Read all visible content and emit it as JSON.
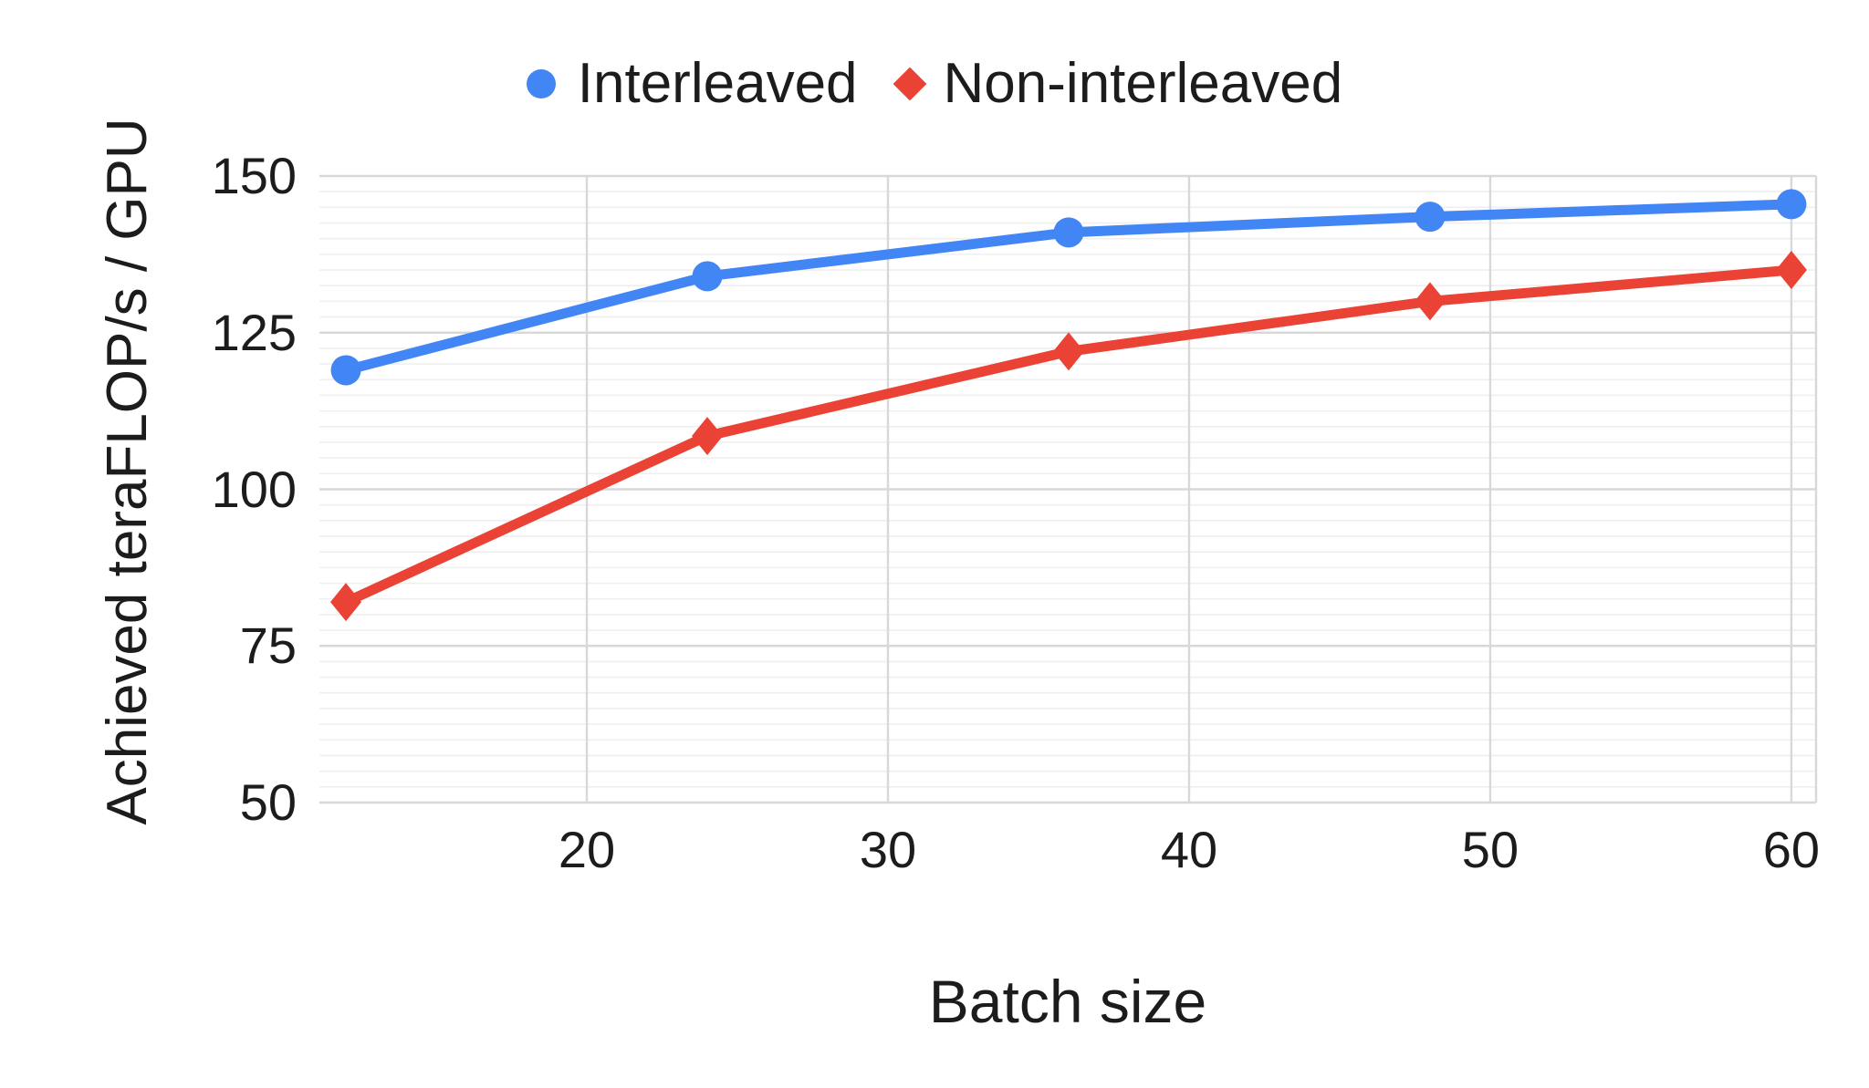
{
  "chart_data": {
    "type": "line",
    "x": [
      12,
      24,
      36,
      48,
      60
    ],
    "series": [
      {
        "name": "Interleaved",
        "marker": "circle",
        "color": "#4285F4",
        "values": [
          119,
          134,
          141,
          143.5,
          145.5
        ]
      },
      {
        "name": "Non-interleaved",
        "marker": "diamond",
        "color": "#EA4335",
        "values": [
          82,
          108.5,
          122,
          130,
          135
        ]
      }
    ],
    "xlabel": "Batch size",
    "ylabel": "Achieved teraFLOP/s / GPU",
    "x_ticks": [
      20,
      30,
      40,
      50,
      60
    ],
    "y_ticks": [
      150,
      125,
      100,
      75,
      50
    ],
    "xlim": [
      11.12,
      60.82
    ],
    "ylim": [
      50,
      150
    ],
    "grid": {
      "major_color": "#d8d8d8",
      "minor_color": "#efefef",
      "minor_step": 2.5,
      "vertical_at_x_ticks": true,
      "right_border": true
    },
    "legend_position": "top-center",
    "text_color": "#1c1c1c",
    "background": "#ffffff",
    "line_width": 11
  }
}
